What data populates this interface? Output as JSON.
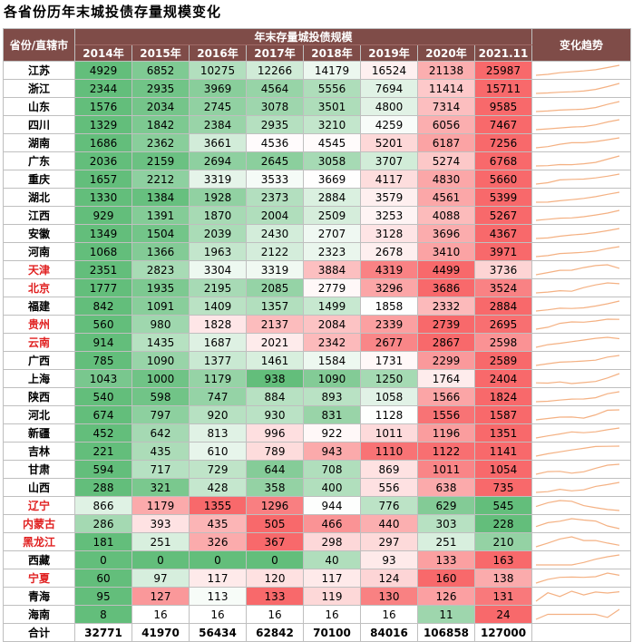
{
  "title": "各省份历年末城投债存量规模变化",
  "header": {
    "province": "省份/直辖市",
    "group": "年末存量城投债规模",
    "trend": "变化趋势"
  },
  "years": [
    "2014年",
    "2015年",
    "2016年",
    "2017年",
    "2018年",
    "2019年",
    "2020年",
    "2021.11"
  ],
  "colors": {
    "header_bg": "#7f4c48",
    "high": "#f8696b",
    "low": "#63be7b",
    "red_label": "#e02020",
    "trend_line": "#f4b183"
  },
  "rows": [
    {
      "name": "江苏",
      "red": false,
      "values": [
        4929,
        6852,
        10275,
        12266,
        14179,
        16524,
        21138,
        25987
      ]
    },
    {
      "name": "浙江",
      "red": false,
      "values": [
        2344,
        2935,
        3969,
        4564,
        5556,
        7694,
        11414,
        15711
      ]
    },
    {
      "name": "山东",
      "red": false,
      "values": [
        1576,
        2034,
        2745,
        3078,
        3501,
        4800,
        7314,
        9585
      ]
    },
    {
      "name": "四川",
      "red": false,
      "values": [
        1329,
        1842,
        2384,
        2935,
        3210,
        4259,
        6056,
        7467
      ]
    },
    {
      "name": "湖南",
      "red": false,
      "values": [
        1686,
        2362,
        3661,
        4536,
        4545,
        5201,
        6187,
        7256
      ]
    },
    {
      "name": "广东",
      "red": false,
      "values": [
        2036,
        2159,
        2694,
        2645,
        3058,
        3707,
        5274,
        6768
      ]
    },
    {
      "name": "重庆",
      "red": false,
      "values": [
        1657,
        2212,
        3319,
        3533,
        3669,
        4117,
        4830,
        5660
      ]
    },
    {
      "name": "湖北",
      "red": false,
      "values": [
        1330,
        1384,
        1928,
        2373,
        2884,
        3579,
        4561,
        5399
      ]
    },
    {
      "name": "江西",
      "red": false,
      "values": [
        929,
        1391,
        1870,
        2004,
        2509,
        3253,
        4088,
        5267
      ]
    },
    {
      "name": "安徽",
      "red": false,
      "values": [
        1349,
        1504,
        2039,
        2430,
        2707,
        3128,
        3696,
        4367
      ]
    },
    {
      "name": "河南",
      "red": false,
      "values": [
        1068,
        1366,
        1963,
        2122,
        2323,
        2678,
        3410,
        3971
      ]
    },
    {
      "name": "天津",
      "red": true,
      "values": [
        2351,
        2823,
        3304,
        3319,
        3884,
        4319,
        4499,
        3736
      ]
    },
    {
      "name": "北京",
      "red": true,
      "values": [
        1777,
        1935,
        2195,
        2085,
        2779,
        3296,
        3686,
        3524
      ]
    },
    {
      "name": "福建",
      "red": false,
      "values": [
        842,
        1091,
        1409,
        1357,
        1499,
        1858,
        2332,
        2884
      ]
    },
    {
      "name": "贵州",
      "red": true,
      "values": [
        560,
        980,
        1828,
        2137,
        2084,
        2339,
        2739,
        2695
      ]
    },
    {
      "name": "云南",
      "red": true,
      "values": [
        914,
        1435,
        1687,
        2021,
        2342,
        2677,
        2867,
        2598
      ]
    },
    {
      "name": "广西",
      "red": false,
      "values": [
        785,
        1090,
        1377,
        1461,
        1584,
        1731,
        2299,
        2589
      ]
    },
    {
      "name": "上海",
      "red": false,
      "values": [
        1043,
        1000,
        1179,
        938,
        1090,
        1250,
        1764,
        2404
      ]
    },
    {
      "name": "陕西",
      "red": false,
      "values": [
        540,
        598,
        747,
        884,
        893,
        1058,
        1566,
        1824
      ]
    },
    {
      "name": "河北",
      "red": false,
      "values": [
        674,
        797,
        920,
        930,
        831,
        1128,
        1556,
        1587
      ]
    },
    {
      "name": "新疆",
      "red": false,
      "values": [
        452,
        642,
        813,
        996,
        922,
        1011,
        1196,
        1351
      ]
    },
    {
      "name": "吉林",
      "red": false,
      "values": [
        221,
        435,
        610,
        789,
        943,
        1110,
        1122,
        1141
      ]
    },
    {
      "name": "甘肃",
      "red": false,
      "values": [
        594,
        717,
        729,
        644,
        708,
        869,
        1011,
        1054
      ]
    },
    {
      "name": "山西",
      "red": false,
      "values": [
        288,
        321,
        428,
        358,
        400,
        556,
        638,
        735
      ]
    },
    {
      "name": "辽宁",
      "red": true,
      "values": [
        866,
        1179,
        1355,
        1296,
        944,
        776,
        629,
        545
      ]
    },
    {
      "name": "内蒙古",
      "red": true,
      "values": [
        286,
        393,
        435,
        505,
        466,
        440,
        303,
        228
      ]
    },
    {
      "name": "黑龙江",
      "red": true,
      "values": [
        181,
        251,
        326,
        367,
        298,
        297,
        251,
        210
      ]
    },
    {
      "name": "西藏",
      "red": false,
      "values": [
        0,
        0,
        0,
        0,
        40,
        93,
        133,
        163
      ]
    },
    {
      "name": "宁夏",
      "red": true,
      "values": [
        60,
        97,
        117,
        120,
        117,
        124,
        160,
        138
      ]
    },
    {
      "name": "青海",
      "red": false,
      "values": [
        95,
        127,
        113,
        133,
        119,
        130,
        126,
        131
      ]
    },
    {
      "name": "海南",
      "red": false,
      "values": [
        8,
        16,
        16,
        16,
        16,
        16,
        11,
        24
      ]
    }
  ],
  "total": {
    "name": "合计",
    "values": [
      32771,
      41970,
      56434,
      62842,
      70100,
      84016,
      106858,
      127000
    ]
  }
}
